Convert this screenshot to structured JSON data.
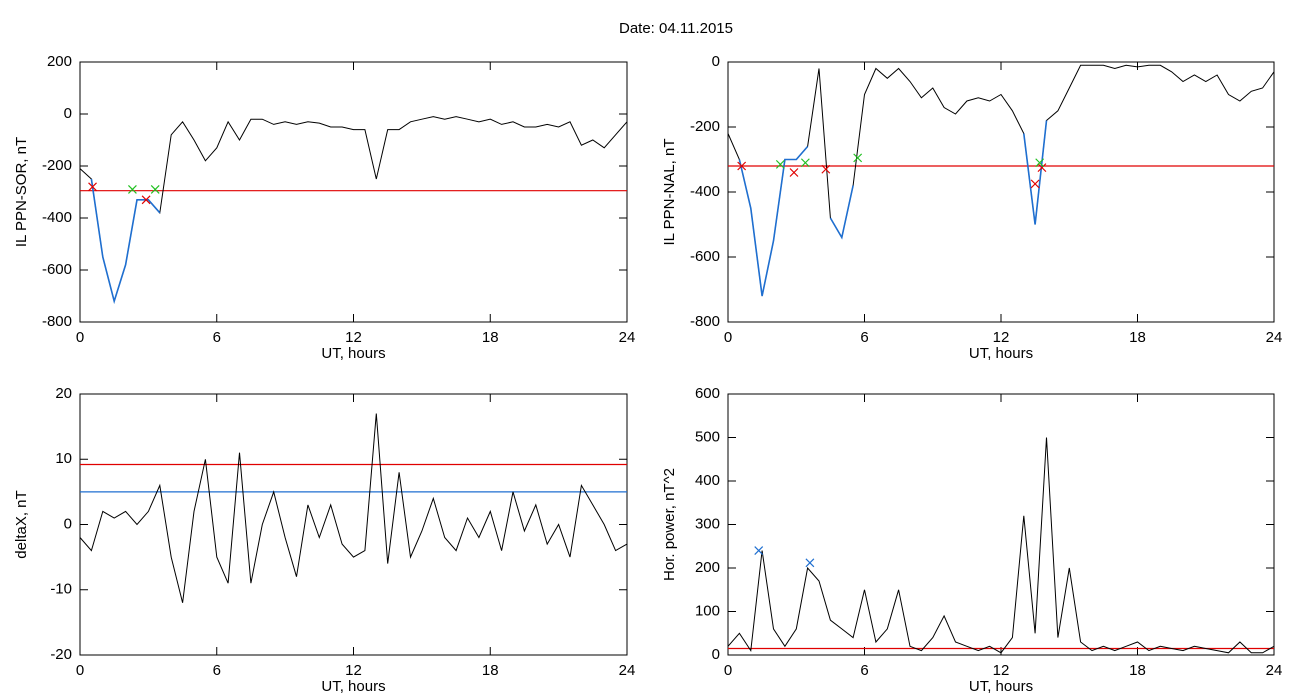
{
  "title": "Date:  04.11.2015",
  "chart_data": [
    {
      "type": "line",
      "xlabel": "UT, hours",
      "ylabel": "IL PPN-SOR, nT",
      "xlim": [
        0,
        24
      ],
      "xticks": [
        0,
        6,
        12,
        18,
        24
      ],
      "ylim": [
        -800,
        200
      ],
      "yticks": [
        -800,
        -600,
        -400,
        -200,
        0,
        200
      ],
      "x": [
        0,
        0.5,
        1,
        1.5,
        2,
        2.5,
        3,
        3.5,
        4,
        4.5,
        5,
        5.5,
        6,
        6.5,
        7,
        7.5,
        8,
        8.5,
        9,
        9.5,
        10,
        10.5,
        11,
        11.5,
        12,
        12.5,
        13,
        13.5,
        14,
        14.5,
        15,
        15.5,
        16,
        16.5,
        17,
        17.5,
        18,
        18.5,
        19,
        19.5,
        20,
        20.5,
        21,
        21.5,
        22,
        22.5,
        23,
        23.5,
        24
      ],
      "series": [
        {
          "color": "#000000",
          "values": [
            -210,
            -250,
            -550,
            -720,
            -580,
            -330,
            -330,
            -380,
            -80,
            -30,
            -100,
            -180,
            -130,
            -30,
            -100,
            -20,
            -20,
            -40,
            -30,
            -40,
            -30,
            -35,
            -50,
            -50,
            -60,
            -60,
            -250,
            -60,
            -60,
            -30,
            -20,
            -10,
            -20,
            -10,
            -20,
            -30,
            -20,
            -40,
            -30,
            -50,
            -50,
            -40,
            -50,
            -30,
            -120,
            -100,
            -130,
            -80,
            -30
          ]
        },
        {
          "color": "#1f6fd0",
          "values": [
            null,
            -250,
            -550,
            -720,
            -580,
            -330,
            -330,
            -380,
            null,
            null,
            null,
            null,
            null,
            null,
            null,
            null,
            null,
            null,
            null,
            null,
            null,
            null,
            null,
            null,
            null,
            null,
            null,
            null,
            null,
            null,
            null,
            null,
            null,
            null,
            null,
            null,
            null,
            null,
            null,
            null,
            null,
            null,
            null,
            null,
            null,
            null,
            null,
            null,
            null
          ]
        }
      ],
      "hlines": [
        {
          "value": -295,
          "color": "#e00000"
        }
      ],
      "markers": [
        {
          "x": 0.55,
          "y": -280,
          "color": "#e00000"
        },
        {
          "x": 2.9,
          "y": -330,
          "color": "#e00000"
        },
        {
          "x": 2.3,
          "y": -290,
          "color": "#20c020"
        },
        {
          "x": 3.3,
          "y": -290,
          "color": "#20c020"
        }
      ]
    },
    {
      "type": "line",
      "xlabel": "UT, hours",
      "ylabel": "IL PPN-NAL, nT",
      "xlim": [
        0,
        24
      ],
      "xticks": [
        0,
        6,
        12,
        18,
        24
      ],
      "ylim": [
        -800,
        0
      ],
      "yticks": [
        -800,
        -600,
        -400,
        -200,
        0
      ],
      "x": [
        0,
        0.5,
        1,
        1.5,
        2,
        2.5,
        3,
        3.5,
        4,
        4.5,
        5,
        5.5,
        6,
        6.5,
        7,
        7.5,
        8,
        8.5,
        9,
        9.5,
        10,
        10.5,
        11,
        11.5,
        12,
        12.5,
        13,
        13.5,
        14,
        14.5,
        15,
        15.5,
        16,
        16.5,
        17,
        17.5,
        18,
        18.5,
        19,
        19.5,
        20,
        20.5,
        21,
        21.5,
        22,
        22.5,
        23,
        23.5,
        24
      ],
      "series": [
        {
          "color": "#000000",
          "values": [
            -220,
            -300,
            -450,
            -720,
            -550,
            -300,
            -300,
            -260,
            -20,
            -480,
            -540,
            -380,
            -100,
            -20,
            -50,
            -20,
            -60,
            -110,
            -80,
            -140,
            -160,
            -120,
            -110,
            -120,
            -100,
            -150,
            -220,
            -500,
            -180,
            -150,
            -80,
            -10,
            -10,
            -10,
            -20,
            -10,
            -15,
            -10,
            -10,
            -30,
            -60,
            -40,
            -60,
            -40,
            -100,
            -120,
            -90,
            -80,
            -30
          ]
        },
        {
          "color": "#1f6fd0",
          "values": [
            null,
            -300,
            -450,
            -720,
            -550,
            -300,
            -300,
            -260,
            null,
            -480,
            -540,
            -380,
            null,
            null,
            null,
            null,
            null,
            null,
            null,
            null,
            null,
            null,
            null,
            null,
            null,
            null,
            -220,
            -500,
            -180,
            null,
            null,
            null,
            null,
            null,
            null,
            null,
            null,
            null,
            null,
            null,
            null,
            null,
            null,
            null,
            null,
            null,
            null,
            null,
            null
          ]
        }
      ],
      "hlines": [
        {
          "value": -320,
          "color": "#e00000"
        }
      ],
      "markers": [
        {
          "x": 0.6,
          "y": -320,
          "color": "#e00000"
        },
        {
          "x": 2.9,
          "y": -340,
          "color": "#e00000"
        },
        {
          "x": 4.3,
          "y": -330,
          "color": "#e00000"
        },
        {
          "x": 13.5,
          "y": -375,
          "color": "#e00000"
        },
        {
          "x": 13.8,
          "y": -325,
          "color": "#e00000"
        },
        {
          "x": 2.3,
          "y": -315,
          "color": "#20c020"
        },
        {
          "x": 3.4,
          "y": -310,
          "color": "#20c020"
        },
        {
          "x": 5.7,
          "y": -295,
          "color": "#20c020"
        },
        {
          "x": 13.7,
          "y": -310,
          "color": "#20c020"
        }
      ]
    },
    {
      "type": "line",
      "xlabel": "UT, hours",
      "ylabel": "deltaX, nT",
      "xlim": [
        0,
        24
      ],
      "xticks": [
        0,
        6,
        12,
        18,
        24
      ],
      "ylim": [
        -20,
        20
      ],
      "yticks": [
        -20,
        -10,
        0,
        10,
        20
      ],
      "x": [
        0,
        0.5,
        1,
        1.5,
        2,
        2.5,
        3,
        3.5,
        4,
        4.5,
        5,
        5.5,
        6,
        6.5,
        7,
        7.5,
        8,
        8.5,
        9,
        9.5,
        10,
        10.5,
        11,
        11.5,
        12,
        12.5,
        13,
        13.5,
        14,
        14.5,
        15,
        15.5,
        16,
        16.5,
        17,
        17.5,
        18,
        18.5,
        19,
        19.5,
        20,
        20.5,
        21,
        21.5,
        22,
        22.5,
        23,
        23.5,
        24
      ],
      "series": [
        {
          "color": "#000000",
          "values": [
            -2,
            -4,
            2,
            1,
            2,
            0,
            2,
            6,
            -5,
            -12,
            2,
            10,
            -5,
            -9,
            11,
            -9,
            0,
            5,
            -2,
            -8,
            3,
            -2,
            3,
            -3,
            -5,
            -4,
            17,
            -6,
            8,
            -5,
            -1,
            4,
            -2,
            -4,
            1,
            -2,
            2,
            -4,
            5,
            -1,
            3,
            -3,
            0,
            -5,
            6,
            3,
            0,
            -4,
            -3
          ]
        }
      ],
      "hlines": [
        {
          "value": 9.2,
          "color": "#e00000"
        },
        {
          "value": 5,
          "color": "#1f6fd0"
        }
      ],
      "markers": []
    },
    {
      "type": "line",
      "xlabel": "UT, hours",
      "ylabel": "Hor. power, nT^2",
      "xlim": [
        0,
        24
      ],
      "xticks": [
        0,
        6,
        12,
        18,
        24
      ],
      "ylim": [
        0,
        600
      ],
      "yticks": [
        0,
        100,
        200,
        300,
        400,
        500,
        600
      ],
      "x": [
        0,
        0.5,
        1,
        1.5,
        2,
        2.5,
        3,
        3.5,
        4,
        4.5,
        5,
        5.5,
        6,
        6.5,
        7,
        7.5,
        8,
        8.5,
        9,
        9.5,
        10,
        10.5,
        11,
        11.5,
        12,
        12.5,
        13,
        13.5,
        14,
        14.5,
        15,
        15.5,
        16,
        16.5,
        17,
        17.5,
        18,
        18.5,
        19,
        19.5,
        20,
        20.5,
        21,
        21.5,
        22,
        22.5,
        23,
        23.5,
        24
      ],
      "series": [
        {
          "color": "#000000",
          "values": [
            20,
            50,
            10,
            240,
            60,
            20,
            60,
            200,
            170,
            80,
            60,
            40,
            150,
            30,
            60,
            150,
            20,
            10,
            40,
            90,
            30,
            20,
            10,
            20,
            5,
            40,
            320,
            50,
            500,
            40,
            200,
            30,
            10,
            20,
            10,
            20,
            30,
            10,
            20,
            15,
            10,
            20,
            15,
            10,
            5,
            30,
            5,
            5,
            20
          ]
        }
      ],
      "hlines": [
        {
          "value": 15,
          "color": "#e00000"
        }
      ],
      "markers": [
        {
          "x": 1.35,
          "y": 240,
          "color": "#1f6fd0"
        },
        {
          "x": 3.6,
          "y": 212,
          "color": "#1f6fd0"
        }
      ]
    }
  ]
}
